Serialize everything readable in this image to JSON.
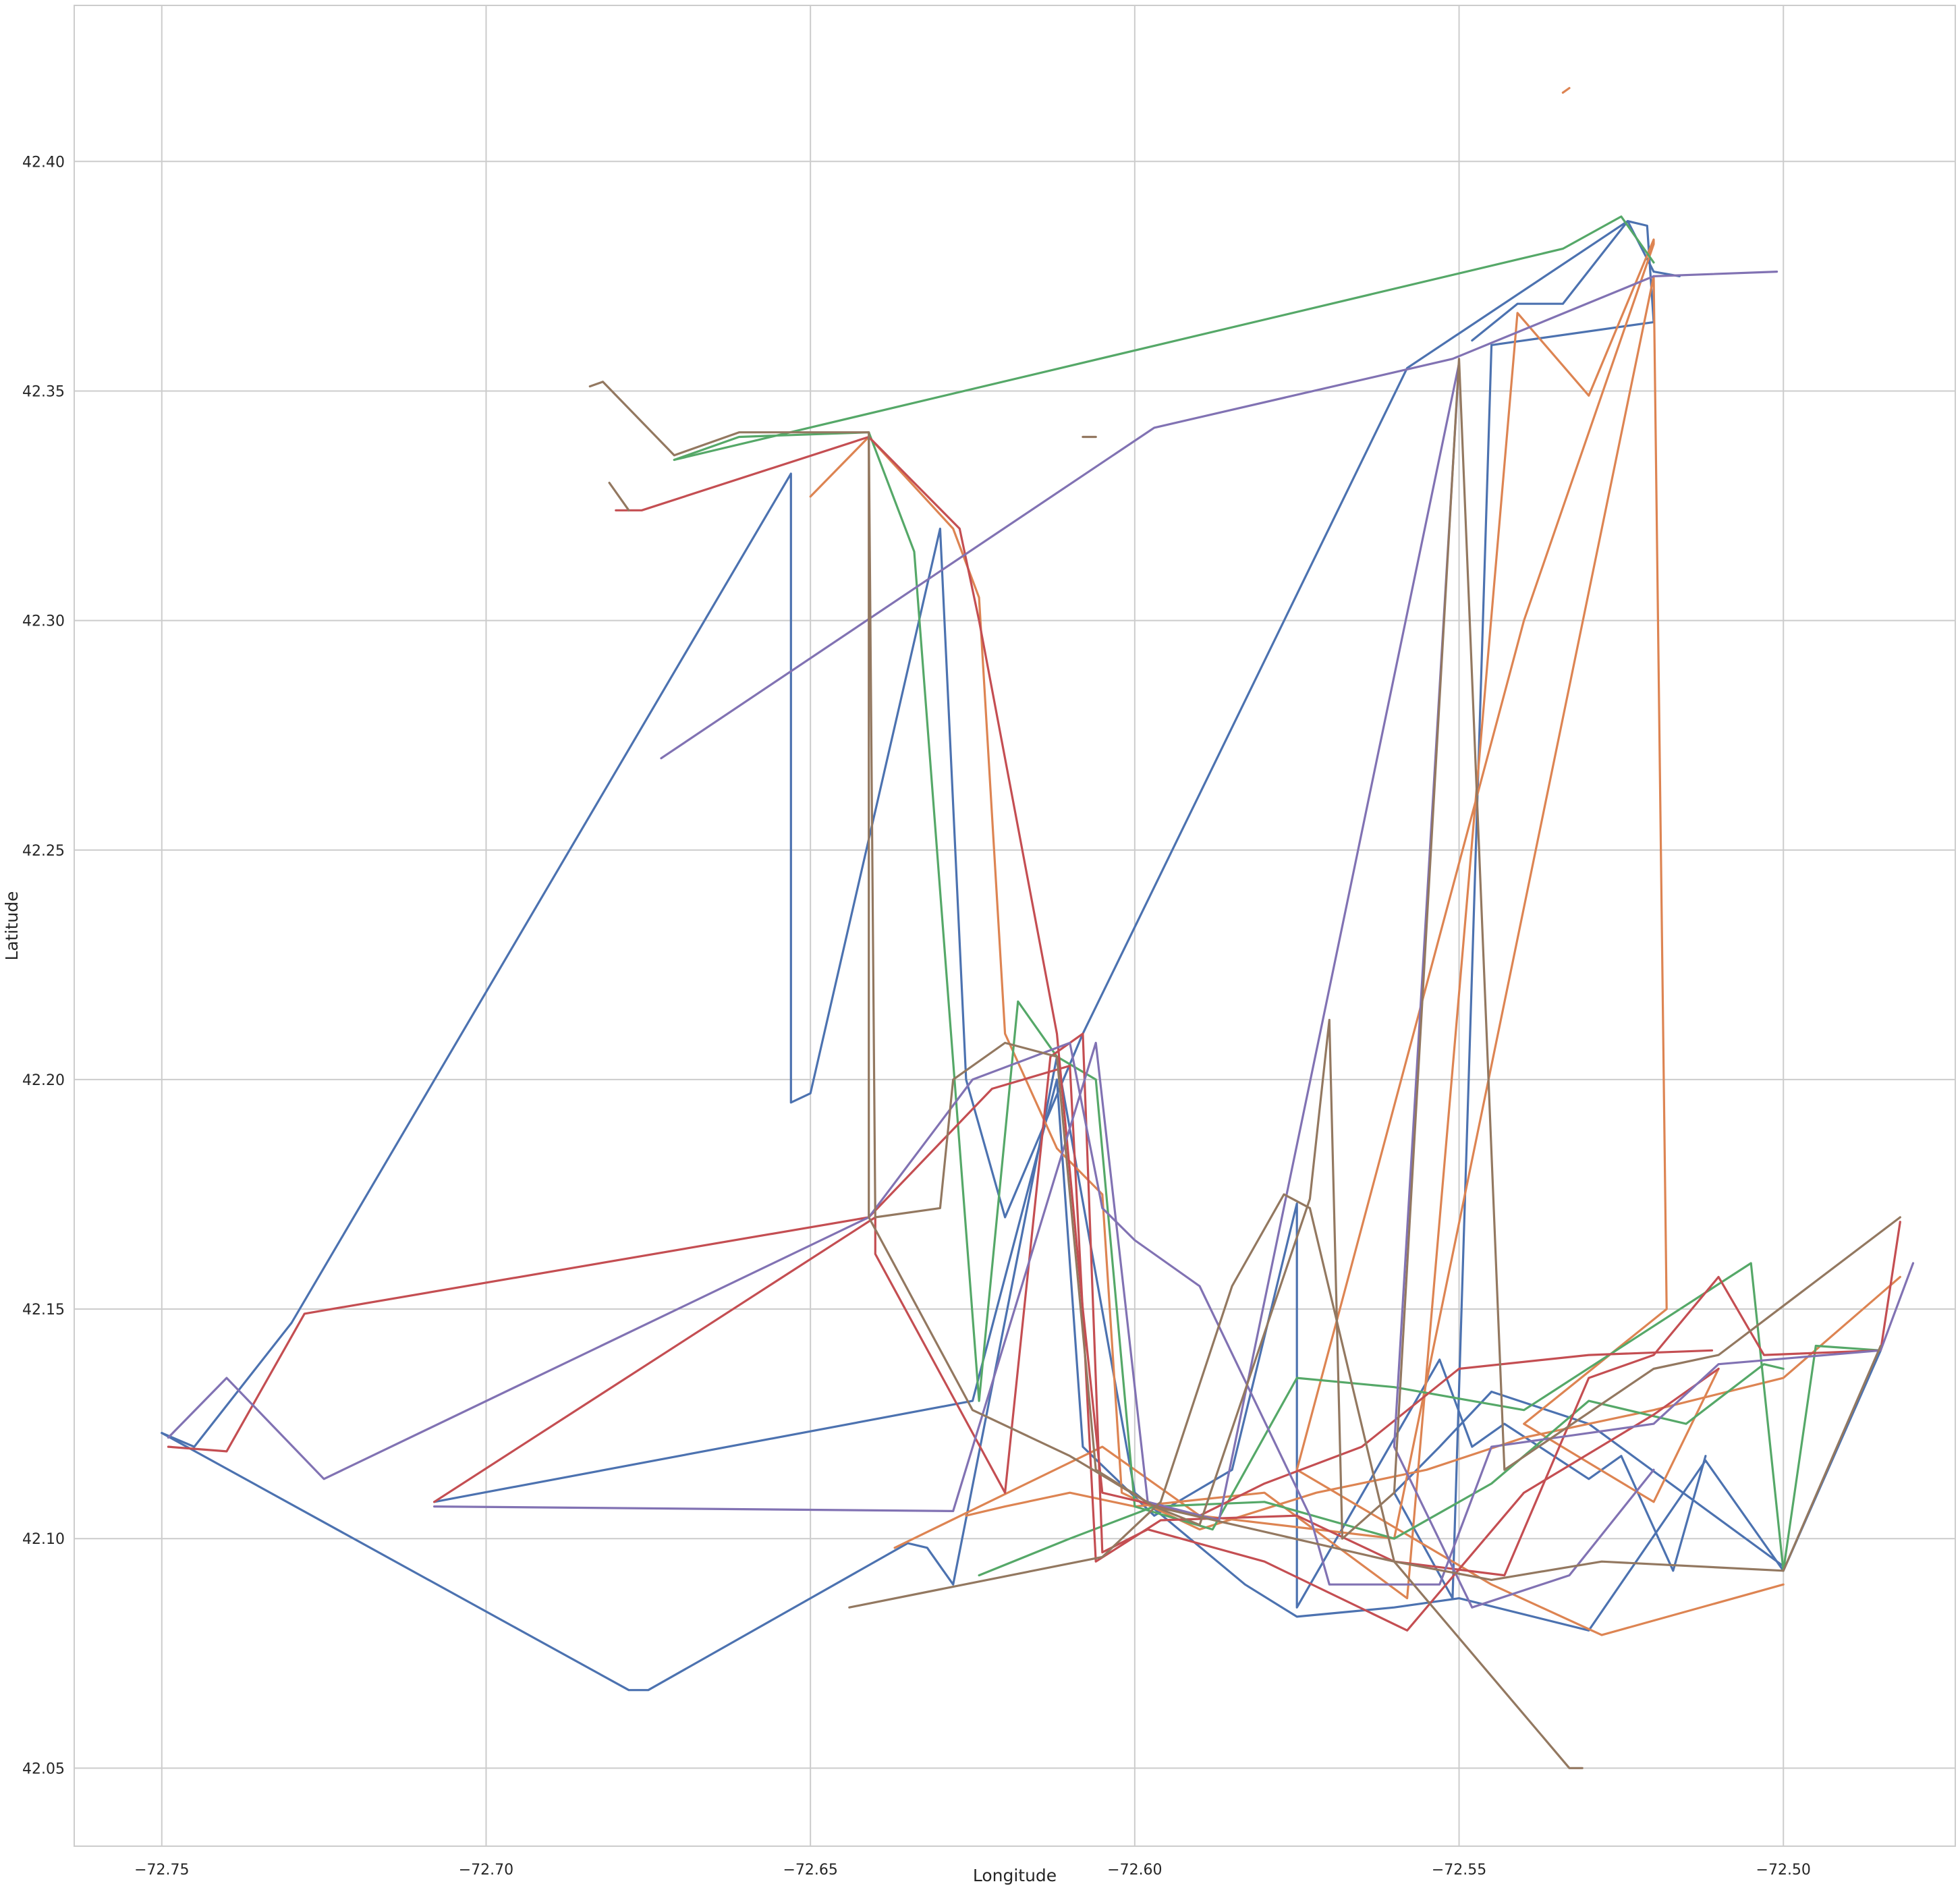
{
  "chart_data": {
    "type": "line",
    "title": "",
    "xlabel": "Longitude",
    "ylabel": "Latitude",
    "xlim": [
      -72.7635,
      -72.4735
    ],
    "ylim": [
      42.033,
      42.434
    ],
    "xticks": [
      -72.75,
      -72.7,
      -72.65,
      -72.6,
      -72.55,
      -72.5
    ],
    "xtick_labels": [
      "−72.75",
      "−72.70",
      "−72.65",
      "−72.60",
      "−72.55",
      "−72.50"
    ],
    "yticks": [
      42.05,
      42.1,
      42.15,
      42.2,
      42.25,
      42.3,
      42.35,
      42.4
    ],
    "ytick_labels": [
      "42.05",
      "42.10",
      "42.15",
      "42.20",
      "42.25",
      "42.30",
      "42.35",
      "42.40"
    ],
    "grid": true,
    "legend": "none",
    "colors": [
      "#4c72b0",
      "#dd8452",
      "#55a868",
      "#c44e52",
      "#8172b3",
      "#937860"
    ],
    "series": [
      {
        "color": "#4c72b0",
        "points": [
          [
            -72.75,
            42.123
          ],
          [
            -72.745,
            42.12
          ],
          [
            -72.73,
            42.147
          ],
          [
            -72.653,
            42.332
          ],
          [
            -72.653,
            42.195
          ],
          [
            -72.65,
            42.197
          ],
          [
            -72.63,
            42.32
          ],
          [
            -72.626,
            42.2
          ],
          [
            -72.62,
            42.17
          ],
          [
            -72.608,
            42.21
          ],
          [
            -72.558,
            42.355
          ],
          [
            -72.524,
            42.387
          ],
          [
            -72.52,
            42.376
          ],
          [
            -72.516,
            42.375
          ]
        ]
      },
      {
        "color": "#4c72b0",
        "points": [
          [
            -72.75,
            42.123
          ],
          [
            -72.678,
            42.067
          ],
          [
            -72.675,
            42.067
          ],
          [
            -72.635,
            42.099
          ],
          [
            -72.632,
            42.098
          ],
          [
            -72.628,
            42.09
          ],
          [
            -72.612,
            42.205
          ],
          [
            -72.6,
            42.11
          ],
          [
            -72.583,
            42.09
          ],
          [
            -72.575,
            42.083
          ],
          [
            -72.56,
            42.085
          ],
          [
            -72.55,
            42.087
          ],
          [
            -72.53,
            42.08
          ],
          [
            -72.512,
            42.117
          ],
          [
            -72.5,
            42.093
          ],
          [
            -72.485,
            42.141
          ]
        ]
      },
      {
        "color": "#4c72b0",
        "points": [
          [
            -72.708,
            42.108
          ],
          [
            -72.625,
            42.13
          ],
          [
            -72.612,
            42.2
          ],
          [
            -72.608,
            42.12
          ],
          [
            -72.597,
            42.105
          ],
          [
            -72.585,
            42.115
          ],
          [
            -72.575,
            42.173
          ],
          [
            -72.575,
            42.085
          ],
          [
            -72.553,
            42.139
          ],
          [
            -72.548,
            42.12
          ],
          [
            -72.543,
            42.125
          ],
          [
            -72.53,
            42.113
          ],
          [
            -72.525,
            42.118
          ],
          [
            -72.517,
            42.093
          ],
          [
            -72.512,
            42.118
          ]
        ]
      },
      {
        "color": "#4c72b0",
        "points": [
          [
            -72.548,
            42.361
          ],
          [
            -72.541,
            42.369
          ],
          [
            -72.534,
            42.369
          ],
          [
            -72.524,
            42.387
          ],
          [
            -72.521,
            42.386
          ],
          [
            -72.52,
            42.365
          ],
          [
            -72.545,
            42.36
          ],
          [
            -72.551,
            42.087
          ],
          [
            -72.56,
            42.11
          ],
          [
            -72.553,
            42.12
          ],
          [
            -72.545,
            42.132
          ],
          [
            -72.53,
            42.125
          ],
          [
            -72.5,
            42.094
          ]
        ]
      },
      {
        "color": "#dd8452",
        "points": [
          [
            -72.65,
            42.327
          ],
          [
            -72.641,
            42.34
          ],
          [
            -72.628,
            42.32
          ],
          [
            -72.624,
            42.305
          ],
          [
            -72.62,
            42.21
          ],
          [
            -72.612,
            42.185
          ],
          [
            -72.605,
            42.175
          ],
          [
            -72.602,
            42.11
          ],
          [
            -72.59,
            42.102
          ],
          [
            -72.572,
            42.11
          ],
          [
            -72.555,
            42.115
          ],
          [
            -72.54,
            42.122
          ],
          [
            -72.52,
            42.128
          ],
          [
            -72.5,
            42.135
          ],
          [
            -72.482,
            42.157
          ]
        ]
      },
      {
        "color": "#dd8452",
        "points": [
          [
            -72.626,
            42.105
          ],
          [
            -72.62,
            42.107
          ],
          [
            -72.61,
            42.11
          ],
          [
            -72.6,
            42.107
          ],
          [
            -72.58,
            42.11
          ],
          [
            -72.558,
            42.087
          ],
          [
            -72.541,
            42.367
          ],
          [
            -72.53,
            42.349
          ],
          [
            -72.52,
            42.383
          ],
          [
            -72.52,
            42.382
          ],
          [
            -72.54,
            42.3
          ],
          [
            -72.575,
            42.115
          ],
          [
            -72.545,
            42.09
          ],
          [
            -72.528,
            42.079
          ],
          [
            -72.5,
            42.09
          ]
        ]
      },
      {
        "color": "#dd8452",
        "points": [
          [
            -72.637,
            42.098
          ],
          [
            -72.605,
            42.12
          ],
          [
            -72.59,
            42.105
          ],
          [
            -72.56,
            42.1
          ],
          [
            -72.52,
            42.375
          ],
          [
            -72.518,
            42.15
          ],
          [
            -72.54,
            42.125
          ],
          [
            -72.52,
            42.108
          ],
          [
            -72.51,
            42.137
          ]
        ]
      },
      {
        "color": "#dd8452",
        "points": [
          [
            -72.534,
            42.415
          ],
          [
            -72.533,
            42.416
          ]
        ]
      },
      {
        "color": "#55a868",
        "points": [
          [
            -72.671,
            42.335
          ],
          [
            -72.661,
            42.34
          ],
          [
            -72.641,
            42.341
          ],
          [
            -72.634,
            42.315
          ],
          [
            -72.624,
            42.13
          ],
          [
            -72.618,
            42.217
          ],
          [
            -72.612,
            42.205
          ],
          [
            -72.606,
            42.2
          ],
          [
            -72.6,
            42.107
          ],
          [
            -72.588,
            42.102
          ],
          [
            -72.575,
            42.135
          ],
          [
            -72.56,
            42.133
          ],
          [
            -72.54,
            42.128
          ],
          [
            -72.505,
            42.16
          ],
          [
            -72.5,
            42.093
          ],
          [
            -72.495,
            42.142
          ],
          [
            -72.485,
            42.141
          ]
        ]
      },
      {
        "color": "#55a868",
        "points": [
          [
            -72.671,
            42.335
          ],
          [
            -72.534,
            42.381
          ],
          [
            -72.525,
            42.388
          ],
          [
            -72.52,
            42.378
          ]
        ]
      },
      {
        "color": "#55a868",
        "points": [
          [
            -72.624,
            42.092
          ],
          [
            -72.61,
            42.1
          ],
          [
            -72.597,
            42.107
          ],
          [
            -72.58,
            42.108
          ],
          [
            -72.56,
            42.1
          ],
          [
            -72.545,
            42.112
          ],
          [
            -72.53,
            42.13
          ],
          [
            -72.515,
            42.125
          ],
          [
            -72.503,
            42.138
          ],
          [
            -72.5,
            42.137
          ]
        ]
      },
      {
        "color": "#c44e52",
        "points": [
          [
            -72.749,
            42.12
          ],
          [
            -72.74,
            42.119
          ],
          [
            -72.728,
            42.149
          ],
          [
            -72.641,
            42.17
          ],
          [
            -72.622,
            42.198
          ],
          [
            -72.61,
            42.203
          ],
          [
            -72.606,
            42.095
          ],
          [
            -72.596,
            42.104
          ],
          [
            -72.575,
            42.105
          ],
          [
            -72.56,
            42.095
          ],
          [
            -72.543,
            42.092
          ],
          [
            -72.53,
            42.135
          ],
          [
            -72.52,
            42.14
          ],
          [
            -72.51,
            42.157
          ],
          [
            -72.503,
            42.14
          ],
          [
            -72.485,
            42.141
          ],
          [
            -72.482,
            42.169
          ]
        ]
      },
      {
        "color": "#c44e52",
        "points": [
          [
            -72.708,
            42.108
          ],
          [
            -72.64,
            42.17
          ],
          [
            -72.64,
            42.162
          ],
          [
            -72.62,
            42.11
          ],
          [
            -72.613,
            42.205
          ],
          [
            -72.608,
            42.21
          ],
          [
            -72.605,
            42.097
          ],
          [
            -72.598,
            42.102
          ],
          [
            -72.58,
            42.095
          ],
          [
            -72.558,
            42.08
          ],
          [
            -72.54,
            42.11
          ],
          [
            -72.52,
            42.127
          ],
          [
            -72.51,
            42.137
          ]
        ]
      },
      {
        "color": "#c44e52",
        "points": [
          [
            -72.68,
            42.324
          ],
          [
            -72.676,
            42.324
          ],
          [
            -72.641,
            42.34
          ],
          [
            -72.627,
            42.32
          ],
          [
            -72.624,
            42.3
          ],
          [
            -72.612,
            42.21
          ],
          [
            -72.608,
            42.15
          ],
          [
            -72.605,
            42.11
          ],
          [
            -72.59,
            42.105
          ],
          [
            -72.58,
            42.112
          ],
          [
            -72.565,
            42.12
          ],
          [
            -72.55,
            42.137
          ],
          [
            -72.53,
            42.14
          ],
          [
            -72.511,
            42.141
          ]
        ]
      },
      {
        "color": "#8172b3",
        "points": [
          [
            -72.749,
            42.122
          ],
          [
            -72.74,
            42.135
          ],
          [
            -72.725,
            42.113
          ],
          [
            -72.641,
            42.17
          ],
          [
            -72.625,
            42.2
          ],
          [
            -72.61,
            42.208
          ],
          [
            -72.605,
            42.172
          ],
          [
            -72.6,
            42.165
          ],
          [
            -72.59,
            42.155
          ],
          [
            -72.573,
            42.105
          ],
          [
            -72.57,
            42.09
          ],
          [
            -72.553,
            42.09
          ],
          [
            -72.545,
            42.12
          ],
          [
            -72.52,
            42.125
          ],
          [
            -72.51,
            42.138
          ],
          [
            -72.485,
            42.141
          ],
          [
            -72.48,
            42.16
          ]
        ]
      },
      {
        "color": "#8172b3",
        "points": [
          [
            -72.673,
            42.27
          ],
          [
            -72.597,
            42.342
          ],
          [
            -72.551,
            42.357
          ],
          [
            -72.52,
            42.375
          ],
          [
            -72.501,
            42.376
          ]
        ]
      },
      {
        "color": "#8172b3",
        "points": [
          [
            -72.708,
            42.107
          ],
          [
            -72.628,
            42.106
          ],
          [
            -72.606,
            42.208
          ],
          [
            -72.598,
            42.108
          ],
          [
            -72.587,
            42.104
          ],
          [
            -72.55,
            42.356
          ],
          [
            -72.56,
            42.12
          ],
          [
            -72.548,
            42.085
          ],
          [
            -72.533,
            42.092
          ],
          [
            -72.52,
            42.115
          ]
        ]
      },
      {
        "color": "#937860",
        "points": [
          [
            -72.684,
            42.351
          ],
          [
            -72.682,
            42.352
          ],
          [
            -72.671,
            42.336
          ],
          [
            -72.661,
            42.341
          ],
          [
            -72.641,
            42.341
          ],
          [
            -72.64,
            42.17
          ],
          [
            -72.63,
            42.172
          ],
          [
            -72.628,
            42.2
          ],
          [
            -72.62,
            42.208
          ],
          [
            -72.612,
            42.205
          ],
          [
            -72.606,
            42.115
          ],
          [
            -72.597,
            42.107
          ],
          [
            -72.59,
            42.103
          ],
          [
            -72.573,
            42.174
          ],
          [
            -72.57,
            42.213
          ],
          [
            -72.568,
            42.1
          ],
          [
            -72.56,
            42.11
          ],
          [
            -72.55,
            42.357
          ],
          [
            -72.543,
            42.115
          ],
          [
            -72.52,
            42.137
          ],
          [
            -72.51,
            42.14
          ],
          [
            -72.482,
            42.17
          ]
        ]
      },
      {
        "color": "#937860",
        "points": [
          [
            -72.644,
            42.085
          ],
          [
            -72.605,
            42.096
          ],
          [
            -72.596,
            42.108
          ],
          [
            -72.585,
            42.155
          ],
          [
            -72.577,
            42.175
          ],
          [
            -72.573,
            42.172
          ],
          [
            -72.56,
            42.095
          ],
          [
            -72.545,
            42.091
          ],
          [
            -72.528,
            42.095
          ],
          [
            -72.5,
            42.093
          ],
          [
            -72.485,
            42.142
          ]
        ]
      },
      {
        "color": "#937860",
        "points": [
          [
            -72.641,
            42.34
          ],
          [
            -72.641,
            42.17
          ],
          [
            -72.625,
            42.128
          ],
          [
            -72.61,
            42.118
          ],
          [
            -72.597,
            42.107
          ],
          [
            -72.56,
            42.095
          ],
          [
            -72.533,
            42.05
          ],
          [
            -72.531,
            42.05
          ]
        ]
      },
      {
        "color": "#937860",
        "points": [
          [
            -72.681,
            42.33
          ],
          [
            -72.678,
            42.324
          ]
        ]
      },
      {
        "color": "#937860",
        "points": [
          [
            -72.608,
            42.34
          ],
          [
            -72.606,
            42.34
          ]
        ]
      }
    ]
  }
}
